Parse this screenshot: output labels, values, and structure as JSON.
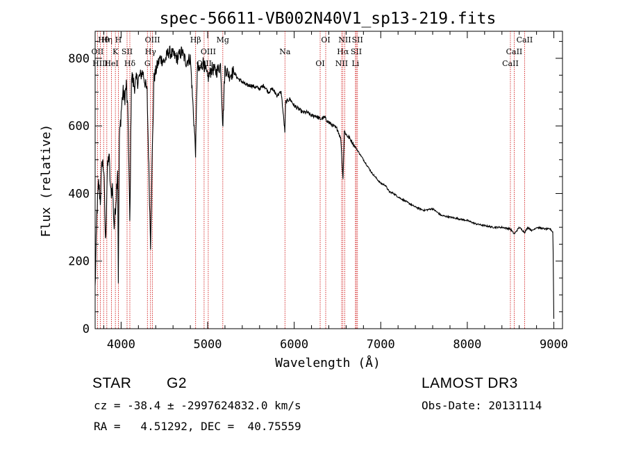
{
  "chart_data": {
    "type": "line",
    "title": "spec-56611-VB002N40V1_sp13-219.fits",
    "xlabel": "Wavelength (Å)",
    "ylabel": "Flux (relative)",
    "xlim": [
      3700,
      9100
    ],
    "ylim": [
      0,
      880
    ],
    "x_ticks": [
      4000,
      5000,
      6000,
      7000,
      8000,
      9000
    ],
    "y_ticks": [
      0,
      200,
      400,
      600,
      800
    ],
    "spectrum_x": [
      3700,
      3720,
      3740,
      3760,
      3780,
      3800,
      3820,
      3840,
      3860,
      3880,
      3900,
      3920,
      3940,
      3960,
      3968,
      3980,
      4000,
      4020,
      4040,
      4060,
      4080,
      4101,
      4120,
      4150,
      4200,
      4250,
      4300,
      4340,
      4360,
      4380,
      4420,
      4450,
      4500,
      4550,
      4600,
      4650,
      4700,
      4750,
      4800,
      4861,
      4880,
      4900,
      4950,
      5000,
      5050,
      5100,
      5150,
      5175,
      5200,
      5250,
      5300,
      5350,
      5400,
      5450,
      5500,
      5550,
      5600,
      5650,
      5700,
      5750,
      5800,
      5850,
      5893,
      5900,
      5950,
      6000,
      6050,
      6100,
      6150,
      6200,
      6250,
      6300,
      6350,
      6400,
      6450,
      6500,
      6540,
      6563,
      6580,
      6600,
      6650,
      6700,
      6750,
      6800,
      6850,
      6900,
      6950,
      7000,
      7050,
      7100,
      7150,
      7200,
      7300,
      7400,
      7500,
      7600,
      7700,
      7800,
      7900,
      8000,
      8100,
      8200,
      8300,
      8400,
      8498,
      8542,
      8600,
      8662,
      8700,
      8750,
      8800,
      8900,
      8960,
      8990,
      9000
    ],
    "spectrum_y": [
      120,
      340,
      430,
      380,
      500,
      470,
      250,
      460,
      520,
      400,
      420,
      300,
      380,
      480,
      150,
      560,
      640,
      700,
      680,
      720,
      620,
      300,
      750,
      720,
      740,
      760,
      700,
      250,
      520,
      740,
      780,
      800,
      790,
      820,
      810,
      800,
      820,
      790,
      800,
      520,
      780,
      760,
      790,
      740,
      770,
      760,
      780,
      600,
      770,
      750,
      760,
      740,
      730,
      720,
      720,
      715,
      710,
      720,
      700,
      710,
      690,
      700,
      580,
      670,
      680,
      660,
      650,
      640,
      640,
      630,
      630,
      620,
      625,
      610,
      600,
      590,
      560,
      440,
      585,
      575,
      560,
      540,
      520,
      500,
      480,
      460,
      445,
      430,
      425,
      405,
      400,
      390,
      375,
      360,
      350,
      355,
      335,
      330,
      325,
      320,
      310,
      305,
      300,
      300,
      295,
      280,
      300,
      285,
      300,
      290,
      300,
      295,
      295,
      285,
      30
    ],
    "line_markers": [
      {
        "label": "Hθ",
        "x": 3798
      },
      {
        "label": "OII",
        "x": 3727
      },
      {
        "label": "HIII",
        "x": 3760
      },
      {
        "label": "Hη",
        "x": 3835
      },
      {
        "label": "K",
        "x": 3934
      },
      {
        "label": "HeI",
        "x": 3889
      },
      {
        "label": "H",
        "x": 3968
      },
      {
        "label": "SII",
        "x": 4069
      },
      {
        "label": "Hδ",
        "x": 4101
      },
      {
        "label": "OIII",
        "x": 4363
      },
      {
        "label": "Hγ",
        "x": 4340
      },
      {
        "label": "G",
        "x": 4304
      },
      {
        "label": "Hβ",
        "x": 4861
      },
      {
        "label": "OIII",
        "x": 5007
      },
      {
        "label": "OIII",
        "x": 4959
      },
      {
        "label": "Mg",
        "x": 5175
      },
      {
        "label": "Na",
        "x": 5893
      },
      {
        "label": "OI",
        "x": 6300
      },
      {
        "label": "OI",
        "x": 6364
      },
      {
        "label": "Hα",
        "x": 6563
      },
      {
        "label": "NII",
        "x": 6548
      },
      {
        "label": "NII",
        "x": 6584
      },
      {
        "label": "SII",
        "x": 6717
      },
      {
        "label": "Li",
        "x": 6708
      },
      {
        "label": "SII",
        "x": 6731
      },
      {
        "label": "CaII",
        "x": 8542
      },
      {
        "label": "CaII",
        "x": 8498
      },
      {
        "label": "CaII",
        "x": 8662
      }
    ],
    "line_color": "#000000",
    "marker_color": "#cc0000"
  },
  "info": {
    "object_type": "STAR",
    "subclass": "G2",
    "survey": "LAMOST DR3",
    "redshift_line": "cz = -38.4 ± -2997624832.0 km/s",
    "obs_date_line": "Obs-Date: 20131114",
    "coords_line": "RA =   4.51292, DEC =  40.75559"
  }
}
